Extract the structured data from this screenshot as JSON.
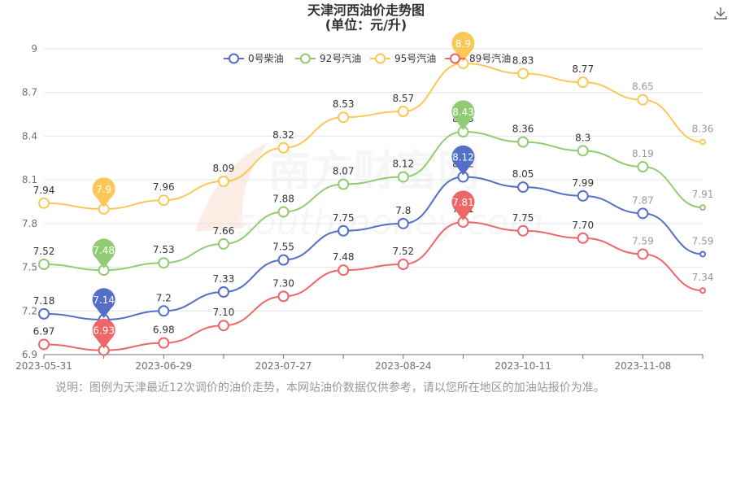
{
  "title": "天津河西油价走势图",
  "subtitle": "(单位：元/升)",
  "note": "说明：图例为天津最近12次调价的油价走势，本网站油价数据仅供参考，请以您所在地区的加油站报价为准。",
  "watermark": {
    "cn": "南方财富网",
    "en": "southmoney.com"
  },
  "toolbar": {
    "download_icon": "download-icon"
  },
  "chart_data": {
    "type": "line",
    "smooth": true,
    "title": "天津河西油价走势图",
    "subtitle": "(单位：元/升)",
    "ylim": [
      6.9,
      9.0
    ],
    "yticks": [
      "6.9",
      "7.2",
      "7.5",
      "7.8",
      "8.1",
      "8.4",
      "8.7",
      "9"
    ],
    "xticks": [
      "2023-05-31",
      "2023-06-29",
      "2023-07-27",
      "2023-08-24",
      "2023-10-11",
      "2023-11-08"
    ],
    "legend_position": "top",
    "grid": true,
    "series": [
      {
        "name": "0号柴油",
        "color": "#5470c6",
        "values": [
          7.18,
          7.14,
          7.2,
          7.33,
          7.55,
          7.75,
          7.8,
          8.12,
          8.05,
          7.99,
          7.87,
          7.59
        ],
        "labels": [
          "7.18",
          "",
          "7.2",
          "7.33",
          "7.55",
          "7.75",
          "7.8",
          "8.12",
          "8.05",
          "7.99",
          "7.87",
          "7.59"
        ],
        "markers": [
          {
            "index": 1,
            "text": "7.14"
          },
          {
            "index": 7,
            "text": "8.12"
          }
        ]
      },
      {
        "name": "92号汽油",
        "color": "#91cc75",
        "values": [
          7.52,
          7.48,
          7.53,
          7.66,
          7.88,
          8.07,
          8.12,
          8.43,
          8.36,
          8.3,
          8.19,
          7.91
        ],
        "labels": [
          "7.52",
          "",
          "7.53",
          "7.66",
          "7.88",
          "8.07",
          "8.12",
          "8.43",
          "8.36",
          "8.3",
          "8.19",
          "7.91"
        ],
        "markers": [
          {
            "index": 1,
            "text": "7.48"
          },
          {
            "index": 7,
            "text": "8.43"
          }
        ]
      },
      {
        "name": "95号汽油",
        "color": "#fac858",
        "values": [
          7.94,
          7.9,
          7.96,
          8.09,
          8.32,
          8.53,
          8.57,
          8.9,
          8.83,
          8.77,
          8.65,
          8.36
        ],
        "labels": [
          "7.94",
          "",
          "7.96",
          "8.09",
          "8.32",
          "8.53",
          "8.57",
          "8.9",
          "8.83",
          "8.77",
          "8.65",
          "8.36"
        ],
        "markers": [
          {
            "index": 1,
            "text": "7.9"
          },
          {
            "index": 7,
            "text": "8.9"
          }
        ]
      },
      {
        "name": "89号汽油",
        "color": "#ee6666",
        "values": [
          6.97,
          6.93,
          6.98,
          7.1,
          7.3,
          7.48,
          7.52,
          7.81,
          7.75,
          7.7,
          7.59,
          7.34
        ],
        "labels": [
          "6.97",
          "",
          "6.98",
          "7.10",
          "7.30",
          "7.48",
          "7.52",
          "7.81",
          "7.75",
          "7.70",
          "7.59",
          "7.34"
        ],
        "markers": [
          {
            "index": 1,
            "text": "6.93"
          },
          {
            "index": 7,
            "text": "7.81"
          }
        ]
      }
    ]
  }
}
